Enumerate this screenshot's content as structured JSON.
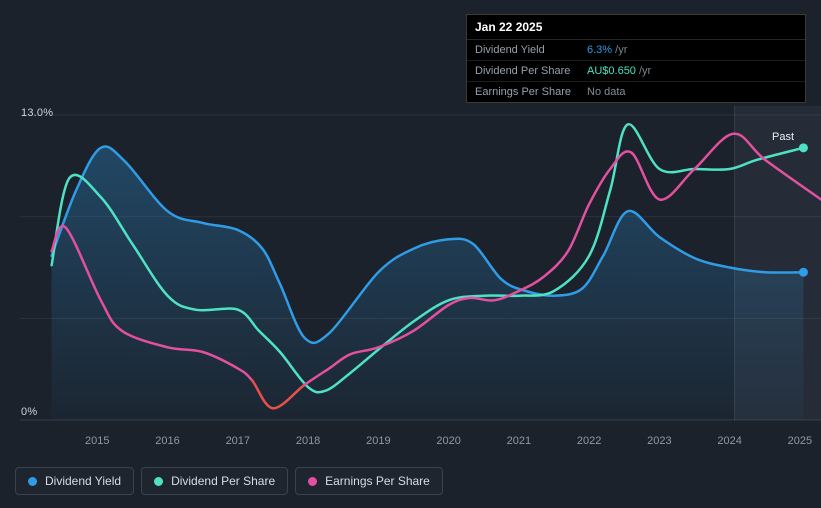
{
  "tooltip": {
    "date": "Jan 22 2025",
    "rows": [
      {
        "label": "Dividend Yield",
        "value": "6.3%",
        "suffix": " /yr",
        "value_color": "#2d9ce0"
      },
      {
        "label": "Dividend Per Share",
        "value": "AU$0.650",
        "suffix": " /yr",
        "value_color": "#45e3c2"
      },
      {
        "label": "Earnings Per Share",
        "value": "No data",
        "suffix": "",
        "value_color": "#858d96"
      }
    ]
  },
  "legend": [
    {
      "label": "Dividend Yield",
      "color": "#2f9ce5"
    },
    {
      "label": "Dividend Per Share",
      "color": "#4ee1c3"
    },
    {
      "label": "Earnings Per Share",
      "color": "#e3509f"
    }
  ],
  "chart_data": {
    "type": "line",
    "x_range": [
      2013.9,
      2025.3
    ],
    "y_range": [
      0,
      13
    ],
    "y_ticks": [
      {
        "value": 13,
        "label": "13.0%"
      },
      {
        "value": 0,
        "label": "0%"
      }
    ],
    "y_gridlines": [
      13,
      8.67,
      4.33,
      0
    ],
    "x_ticks": [
      2015,
      2016,
      2017,
      2018,
      2019,
      2020,
      2021,
      2022,
      2023,
      2024,
      2025
    ],
    "past_label": "Past",
    "past_region_start": 2024.07,
    "marker_x": 2025.05,
    "series": [
      {
        "name": "Dividend Yield",
        "color": "#2f9ce5",
        "area": true,
        "end_dot": true,
        "unit": "percent",
        "points": [
          [
            2014.35,
            7.0
          ],
          [
            2014.7,
            9.8
          ],
          [
            2015.05,
            11.6
          ],
          [
            2015.4,
            11.0
          ],
          [
            2016.0,
            8.9
          ],
          [
            2016.5,
            8.4
          ],
          [
            2017.0,
            8.1
          ],
          [
            2017.35,
            7.3
          ],
          [
            2017.6,
            5.8
          ],
          [
            2017.95,
            3.5
          ],
          [
            2018.3,
            3.7
          ],
          [
            2019.0,
            6.3
          ],
          [
            2019.5,
            7.3
          ],
          [
            2020.0,
            7.7
          ],
          [
            2020.35,
            7.5
          ],
          [
            2020.75,
            6.0
          ],
          [
            2021.1,
            5.5
          ],
          [
            2021.5,
            5.3
          ],
          [
            2021.9,
            5.6
          ],
          [
            2022.2,
            7.0
          ],
          [
            2022.55,
            8.9
          ],
          [
            2023.0,
            7.8
          ],
          [
            2023.5,
            6.9
          ],
          [
            2024.0,
            6.5
          ],
          [
            2024.5,
            6.3
          ],
          [
            2025.05,
            6.3
          ]
        ]
      },
      {
        "name": "Dividend Per Share",
        "color": "#4ee1c3",
        "area": false,
        "end_dot": true,
        "unit": "normalized",
        "points": [
          [
            2014.35,
            6.6
          ],
          [
            2014.6,
            10.3
          ],
          [
            2015.05,
            9.5
          ],
          [
            2015.5,
            7.5
          ],
          [
            2016.0,
            5.3
          ],
          [
            2016.4,
            4.7
          ],
          [
            2017.0,
            4.7
          ],
          [
            2017.3,
            3.8
          ],
          [
            2017.6,
            2.9
          ],
          [
            2018.0,
            1.4
          ],
          [
            2018.25,
            1.25
          ],
          [
            2018.6,
            2.0
          ],
          [
            2019.0,
            3.0
          ],
          [
            2019.5,
            4.2
          ],
          [
            2020.0,
            5.1
          ],
          [
            2020.5,
            5.3
          ],
          [
            2021.0,
            5.3
          ],
          [
            2021.5,
            5.5
          ],
          [
            2022.0,
            7.0
          ],
          [
            2022.3,
            9.8
          ],
          [
            2022.55,
            12.6
          ],
          [
            2023.0,
            10.7
          ],
          [
            2023.5,
            10.7
          ],
          [
            2024.0,
            10.7
          ],
          [
            2024.4,
            11.1
          ],
          [
            2025.05,
            11.6
          ]
        ]
      },
      {
        "name": "Earnings Per Share",
        "color": "#e3509f",
        "negative_color": "#e6504b",
        "negative_ranges": [
          [
            2017.15,
            2017.97
          ]
        ],
        "area": false,
        "end_dot": false,
        "unit": "normalized",
        "points": [
          [
            2014.35,
            7.2
          ],
          [
            2014.55,
            8.2
          ],
          [
            2015.05,
            5.1
          ],
          [
            2015.35,
            3.8
          ],
          [
            2016.0,
            3.1
          ],
          [
            2016.5,
            2.9
          ],
          [
            2017.0,
            2.2
          ],
          [
            2017.2,
            1.7
          ],
          [
            2017.5,
            0.5
          ],
          [
            2017.95,
            1.5
          ],
          [
            2018.3,
            2.2
          ],
          [
            2018.6,
            2.8
          ],
          [
            2019.0,
            3.1
          ],
          [
            2019.5,
            3.8
          ],
          [
            2020.0,
            4.9
          ],
          [
            2020.3,
            5.2
          ],
          [
            2020.65,
            5.1
          ],
          [
            2021.0,
            5.5
          ],
          [
            2021.35,
            6.1
          ],
          [
            2021.7,
            7.2
          ],
          [
            2022.0,
            9.2
          ],
          [
            2022.3,
            10.7
          ],
          [
            2022.6,
            11.4
          ],
          [
            2023.0,
            9.4
          ],
          [
            2023.5,
            10.7
          ],
          [
            2024.05,
            12.2
          ],
          [
            2024.5,
            11.1
          ],
          [
            2025.3,
            9.4
          ]
        ]
      }
    ]
  }
}
